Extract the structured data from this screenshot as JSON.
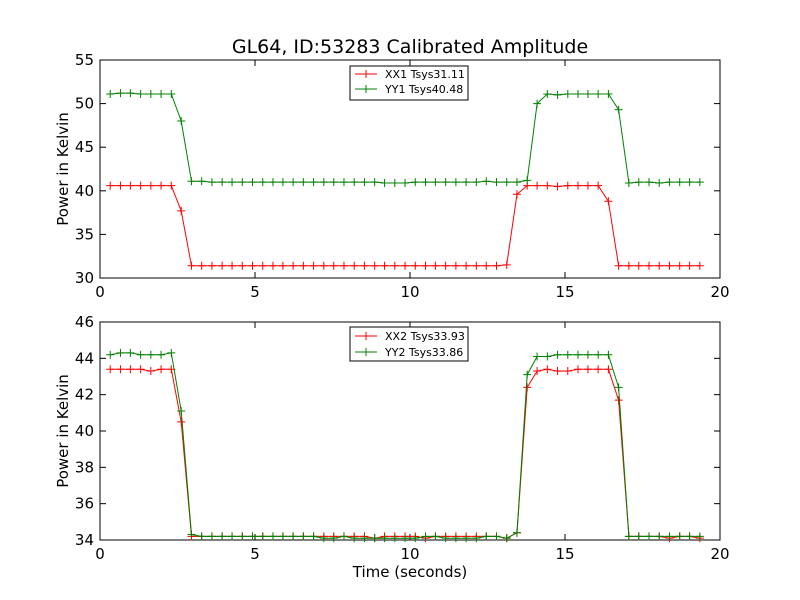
{
  "chart_data": [
    {
      "type": "line",
      "title": "GL64, ID:53283 Calibrated Amplitude",
      "xlabel": "",
      "ylabel": "Power in Kelvin",
      "xlim": [
        0,
        20
      ],
      "ylim": [
        30,
        55
      ],
      "xticks": [
        "0",
        "5",
        "10",
        "15",
        "20"
      ],
      "yticks": [
        "30",
        "35",
        "40",
        "45",
        "50",
        "55"
      ],
      "legend_position": "top-center",
      "grid": false,
      "x": [
        0.33,
        0.66,
        0.98,
        1.31,
        1.64,
        1.97,
        2.3,
        2.62,
        2.95,
        3.28,
        3.61,
        3.94,
        4.26,
        4.59,
        4.92,
        5.25,
        5.58,
        5.9,
        6.23,
        6.56,
        6.89,
        7.22,
        7.54,
        7.87,
        8.2,
        8.53,
        8.86,
        9.18,
        9.51,
        9.84,
        10.17,
        10.5,
        10.82,
        11.15,
        11.48,
        11.81,
        12.14,
        12.46,
        12.79,
        13.12,
        13.45,
        13.78,
        14.1,
        14.43,
        14.76,
        15.09,
        15.42,
        15.74,
        16.07,
        16.4,
        16.73,
        17.06,
        17.38,
        17.71,
        18.04,
        18.37,
        18.7,
        19.02,
        19.35
      ],
      "series": [
        {
          "name": "XX1 Tsys31.11",
          "color": "#ff0000",
          "values": [
            40.6,
            40.6,
            40.6,
            40.6,
            40.6,
            40.6,
            40.6,
            37.7,
            31.4,
            31.4,
            31.4,
            31.4,
            31.4,
            31.4,
            31.4,
            31.4,
            31.4,
            31.4,
            31.4,
            31.4,
            31.4,
            31.4,
            31.4,
            31.4,
            31.4,
            31.4,
            31.4,
            31.4,
            31.4,
            31.4,
            31.4,
            31.4,
            31.4,
            31.4,
            31.4,
            31.4,
            31.4,
            31.4,
            31.4,
            31.5,
            39.6,
            40.6,
            40.6,
            40.6,
            40.5,
            40.6,
            40.6,
            40.6,
            40.6,
            38.8,
            31.4,
            31.4,
            31.4,
            31.4,
            31.4,
            31.4,
            31.4,
            31.4,
            31.4
          ]
        },
        {
          "name": "YY1 Tsys40.48",
          "color": "#008000",
          "values": [
            51.1,
            51.2,
            51.2,
            51.1,
            51.1,
            51.1,
            51.1,
            48.0,
            41.1,
            41.1,
            41.0,
            41.0,
            41.0,
            41.0,
            41.0,
            41.0,
            41.0,
            41.0,
            41.0,
            41.0,
            41.0,
            41.0,
            41.0,
            41.0,
            41.0,
            41.0,
            41.0,
            40.9,
            40.9,
            40.9,
            41.0,
            41.0,
            41.0,
            41.0,
            41.0,
            41.0,
            41.0,
            41.1,
            41.0,
            41.0,
            41.0,
            41.2,
            50.0,
            51.1,
            51.0,
            51.1,
            51.1,
            51.1,
            51.1,
            51.1,
            49.3,
            40.9,
            41.0,
            41.0,
            40.9,
            41.0,
            41.0,
            41.0,
            41.0
          ]
        }
      ]
    },
    {
      "type": "line",
      "title": "",
      "xlabel": "Time (seconds)",
      "ylabel": "Power in Kelvin",
      "xlim": [
        0,
        20
      ],
      "ylim": [
        34,
        46
      ],
      "xticks": [
        "0",
        "5",
        "10",
        "15",
        "20"
      ],
      "yticks": [
        "34",
        "36",
        "38",
        "40",
        "42",
        "44",
        "46"
      ],
      "legend_position": "top-center",
      "grid": false,
      "x": [
        0.33,
        0.66,
        0.98,
        1.31,
        1.64,
        1.97,
        2.3,
        2.62,
        2.95,
        3.28,
        3.61,
        3.94,
        4.26,
        4.59,
        4.92,
        5.25,
        5.58,
        5.9,
        6.23,
        6.56,
        6.89,
        7.22,
        7.54,
        7.87,
        8.2,
        8.53,
        8.86,
        9.18,
        9.51,
        9.84,
        10.17,
        10.5,
        10.82,
        11.15,
        11.48,
        11.81,
        12.14,
        12.46,
        12.79,
        13.12,
        13.45,
        13.78,
        14.1,
        14.43,
        14.76,
        15.09,
        15.42,
        15.74,
        16.07,
        16.4,
        16.73,
        17.06,
        17.38,
        17.71,
        18.04,
        18.37,
        18.7,
        19.02,
        19.35
      ],
      "series": [
        {
          "name": "XX2 Tsys33.93",
          "color": "#ff0000",
          "values": [
            43.4,
            43.4,
            43.4,
            43.4,
            43.3,
            43.4,
            43.4,
            40.5,
            34.2,
            34.2,
            34.2,
            34.2,
            34.2,
            34.2,
            34.2,
            34.2,
            34.2,
            34.2,
            34.2,
            34.2,
            34.2,
            34.2,
            34.2,
            34.2,
            34.2,
            34.2,
            34.1,
            34.2,
            34.2,
            34.2,
            34.2,
            34.1,
            34.2,
            34.2,
            34.2,
            34.2,
            34.2,
            34.2,
            34.2,
            34.1,
            34.4,
            42.4,
            43.3,
            43.4,
            43.3,
            43.3,
            43.4,
            43.4,
            43.4,
            43.4,
            41.7,
            34.2,
            34.2,
            34.2,
            34.2,
            34.1,
            34.2,
            34.2,
            34.1
          ]
        },
        {
          "name": "YY2 Tsys33.86",
          "color": "#008000",
          "values": [
            44.2,
            44.3,
            44.3,
            44.2,
            44.2,
            44.2,
            44.3,
            41.1,
            34.3,
            34.2,
            34.2,
            34.2,
            34.2,
            34.2,
            34.2,
            34.2,
            34.2,
            34.2,
            34.2,
            34.2,
            34.2,
            34.1,
            34.1,
            34.2,
            34.1,
            34.1,
            34.1,
            34.1,
            34.1,
            34.1,
            34.1,
            34.2,
            34.2,
            34.1,
            34.1,
            34.1,
            34.1,
            34.2,
            34.2,
            34.1,
            34.4,
            43.1,
            44.1,
            44.1,
            44.2,
            44.2,
            44.2,
            44.2,
            44.2,
            44.2,
            42.4,
            34.2,
            34.2,
            34.2,
            34.2,
            34.2,
            34.2,
            34.2,
            34.2
          ]
        }
      ]
    }
  ]
}
